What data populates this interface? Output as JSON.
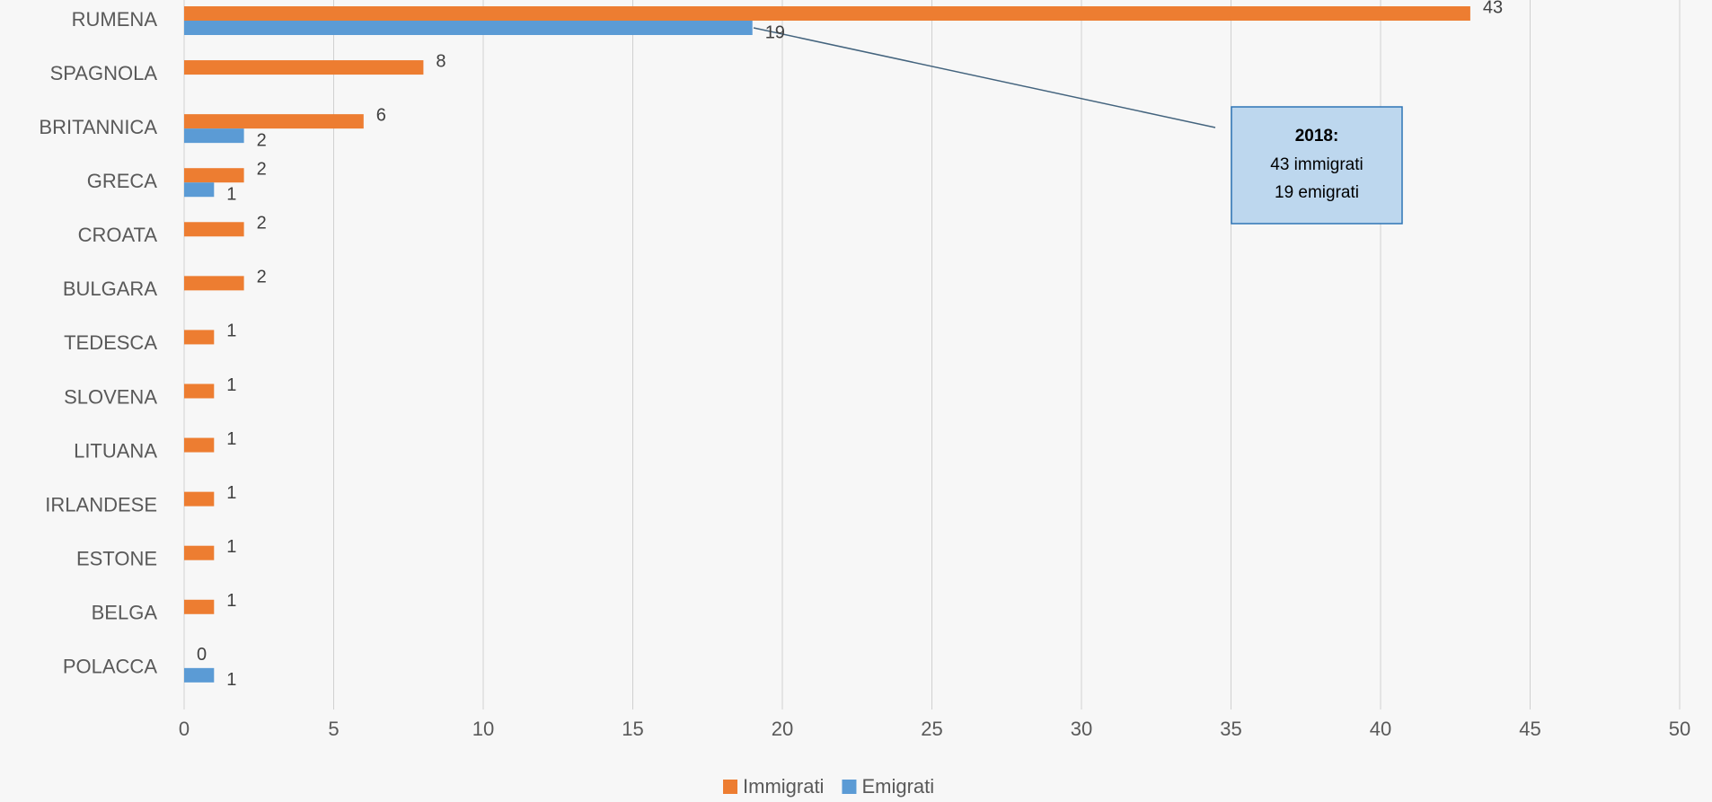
{
  "chart_data": {
    "type": "bar",
    "orientation": "horizontal",
    "categories": [
      "RUMENA",
      "SPAGNOLA",
      "BRITANNICA",
      "GRECA",
      "CROATA",
      "BULGARA",
      "TEDESCA",
      "SLOVENA",
      "LITUANA",
      "IRLANDESE",
      "ESTONE",
      "BELGA",
      "POLACCA"
    ],
    "series": [
      {
        "name": "Immigrati",
        "color": "#ed7d31",
        "values": [
          43,
          8,
          6,
          2,
          2,
          2,
          1,
          1,
          1,
          1,
          1,
          1,
          0
        ]
      },
      {
        "name": "Emigrati",
        "color": "#5b9bd5",
        "values": [
          19,
          null,
          2,
          1,
          null,
          null,
          null,
          null,
          null,
          null,
          null,
          null,
          1
        ]
      }
    ],
    "xlim": [
      0,
      50
    ],
    "xticks": [
      0,
      5,
      10,
      15,
      20,
      25,
      30,
      35,
      40,
      45,
      50
    ],
    "grid": true,
    "legend": "bottom",
    "annotation": {
      "title": "2018:",
      "lines": [
        "43 immigrati",
        "19 emigrati"
      ]
    }
  }
}
